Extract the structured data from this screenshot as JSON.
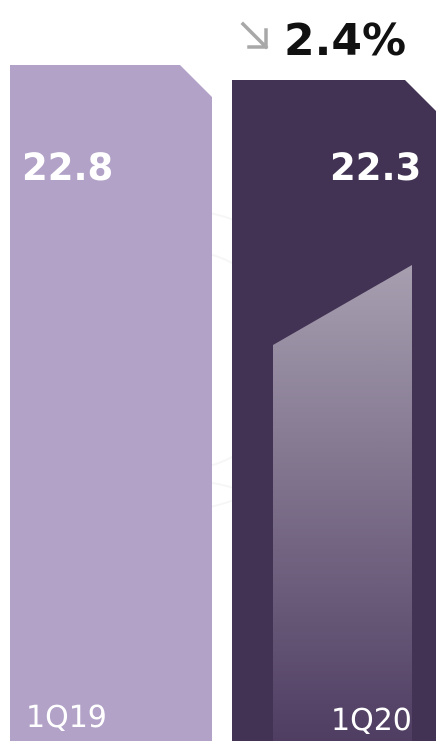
{
  "chart_data": {
    "type": "bar",
    "categories": [
      "1Q19",
      "1Q20"
    ],
    "values": [
      22.8,
      22.3
    ],
    "value_labels": [
      "22.8",
      "22.3"
    ],
    "change": {
      "direction": "down",
      "icon": "arrow-down-right-icon",
      "label": "2.4%"
    },
    "colors": {
      "bar_1Q19": "#b2a2c7",
      "bar_1Q20": "#423354",
      "change_arrow": "#a8a8a8"
    }
  }
}
